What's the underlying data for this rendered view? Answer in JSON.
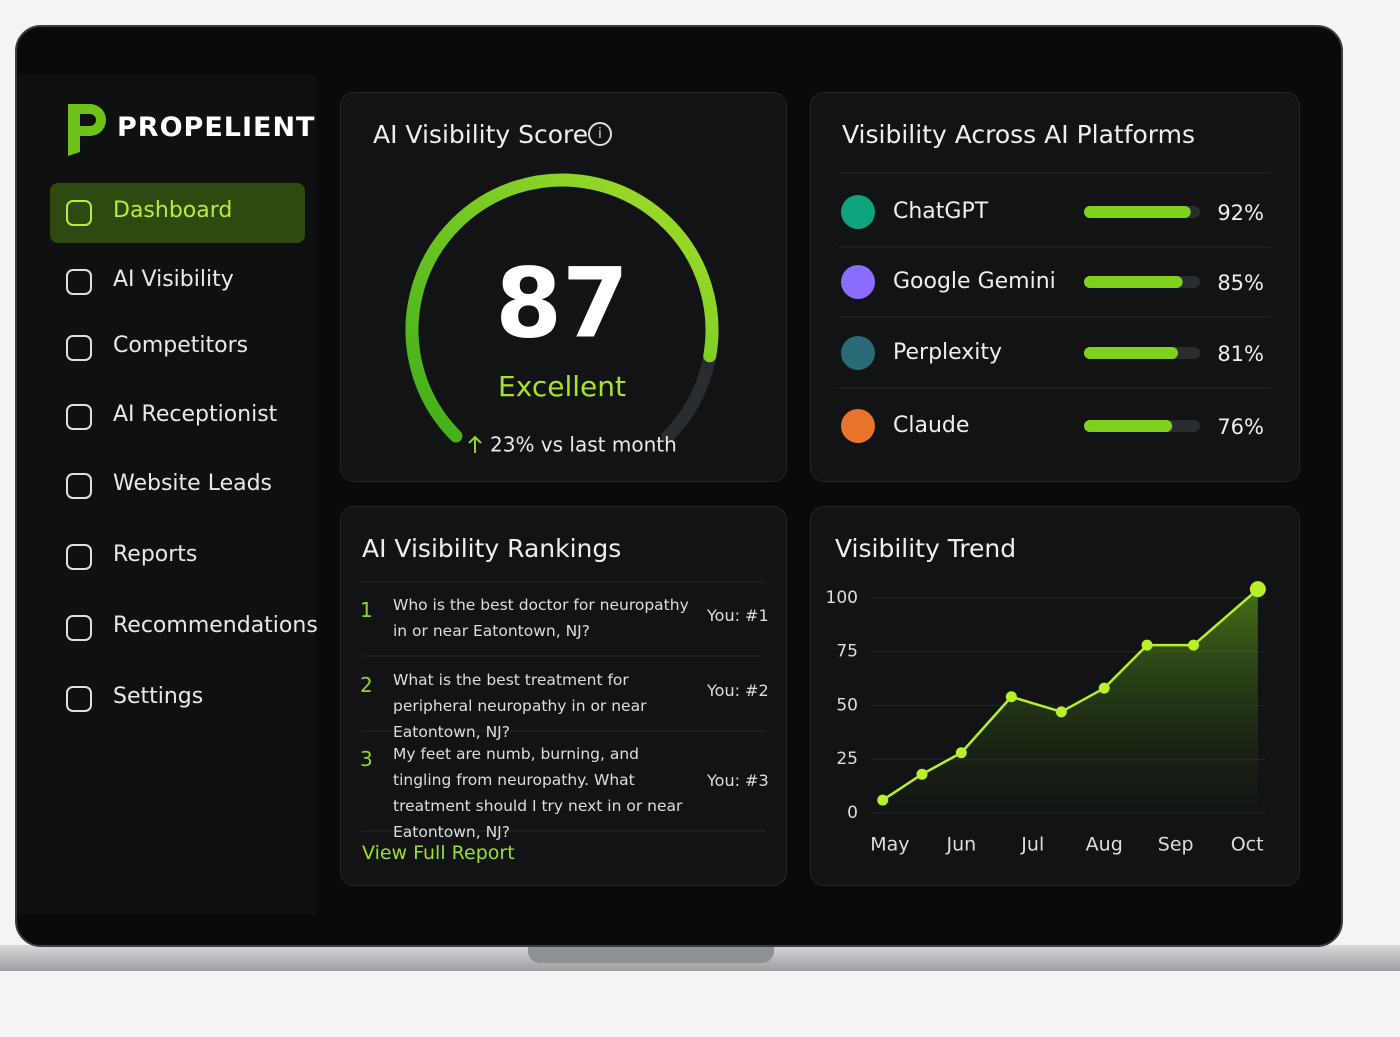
{
  "brand": "PROPELIENT",
  "nav": [
    "Dashboard",
    "AI Visibility",
    "Competitors",
    "AI Receptionist",
    "Website Leads",
    "Reports",
    "Recommendations",
    "Settings"
  ],
  "score_card": {
    "title": "AI Visibility Score",
    "score": 87,
    "gauge_range": [
      0,
      100
    ],
    "rating": "Excellent",
    "change": "23% vs last month"
  },
  "platforms": {
    "title": "Visibility Across AI Platforms",
    "bar_range": [
      0,
      100
    ],
    "bar_color": "#7fd11b",
    "items": [
      {
        "name": "ChatGPT",
        "value": 92,
        "value_label": "92%",
        "color": "#10a37f"
      },
      {
        "name": "Google Gemini",
        "value": 85,
        "value_label": "85%",
        "color": "#8a6cff"
      },
      {
        "name": "Perplexity",
        "value": 81,
        "value_label": "81%",
        "color": "#2a6a74"
      },
      {
        "name": "Claude",
        "value": 76,
        "value_label": "76%",
        "color": "#e8742a"
      }
    ]
  },
  "rankings": {
    "title": "AI Visibility Rankings",
    "items": [
      {
        "rank": "1",
        "query": "Who is the best doctor for neuropathy in or near Eatontown, NJ?",
        "position": "You: #1"
      },
      {
        "rank": "2",
        "query": "What is the best treatment for peripheral neuropathy in or near Eatontown, NJ?",
        "position": "You: #2"
      },
      {
        "rank": "3",
        "query": "My feet are numb, burning, and tingling from neuropathy. What treatment should I try next in or near Eatontown, NJ?",
        "position": "You: #3"
      }
    ],
    "link": "View Full Report"
  },
  "trend": {
    "type": "line",
    "title": "Visibility Trend",
    "color": "#b8f02a",
    "x": [
      -0.1,
      0.45,
      1,
      1.7,
      2.4,
      3,
      3.6,
      4.25,
      5.15
    ],
    "values": [
      6,
      18,
      28,
      54,
      47,
      58,
      78,
      78,
      104
    ],
    "xlim": [
      -0.25,
      5.25
    ],
    "xticks": [
      {
        "value": 0,
        "label": "May"
      },
      {
        "value": 1,
        "label": "Jun"
      },
      {
        "value": 2,
        "label": "Jul"
      },
      {
        "value": 3,
        "label": "Aug"
      },
      {
        "value": 4,
        "label": "Sep"
      },
      {
        "value": 5,
        "label": "Oct"
      }
    ],
    "ylim": [
      0,
      105
    ],
    "yticks": [
      0,
      25,
      50,
      75,
      100
    ],
    "grid": true
  }
}
